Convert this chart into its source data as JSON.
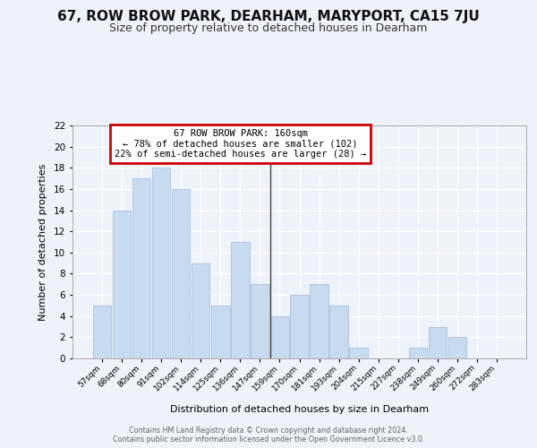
{
  "title": "67, ROW BROW PARK, DEARHAM, MARYPORT, CA15 7JU",
  "subtitle": "Size of property relative to detached houses in Dearham",
  "xlabel": "Distribution of detached houses by size in Dearham",
  "ylabel": "Number of detached properties",
  "bar_color": "#c8daf0",
  "bar_edge_color": "#a8c0e0",
  "bin_labels": [
    "57sqm",
    "68sqm",
    "80sqm",
    "91sqm",
    "102sqm",
    "114sqm",
    "125sqm",
    "136sqm",
    "147sqm",
    "159sqm",
    "170sqm",
    "181sqm",
    "193sqm",
    "204sqm",
    "215sqm",
    "227sqm",
    "238sqm",
    "249sqm",
    "260sqm",
    "272sqm",
    "283sqm"
  ],
  "values": [
    5,
    14,
    17,
    18,
    16,
    9,
    5,
    11,
    7,
    4,
    6,
    7,
    5,
    1,
    0,
    0,
    1,
    3,
    2,
    0,
    0
  ],
  "property_bin_index": 9,
  "vline_color": "#444444",
  "annotation_line1": "67 ROW BROW PARK: 160sqm",
  "annotation_line2": "← 78% of detached houses are smaller (102)",
  "annotation_line3": "22% of semi-detached houses are larger (28) →",
  "annotation_box_edgecolor": "#cc0000",
  "ylim": [
    0,
    22
  ],
  "yticks": [
    0,
    2,
    4,
    6,
    8,
    10,
    12,
    14,
    16,
    18,
    20,
    22
  ],
  "background_color": "#eef2fa",
  "footer_line1": "Contains HM Land Registry data © Crown copyright and database right 2024.",
  "footer_line2": "Contains public sector information licensed under the Open Government Licence v3.0.",
  "title_fontsize": 11,
  "subtitle_fontsize": 9,
  "grid_color": "#ffffff"
}
